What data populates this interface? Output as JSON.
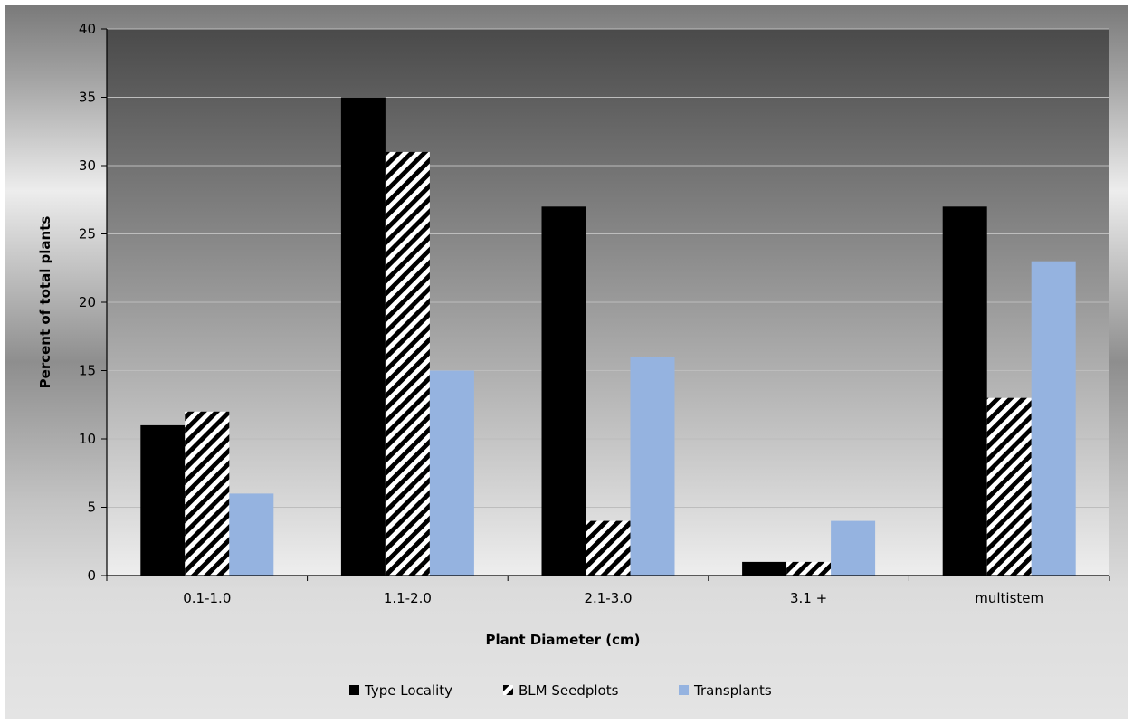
{
  "chart_data": {
    "type": "bar",
    "title": "",
    "xlabel": "Plant Diameter (cm)",
    "ylabel": "Percent of total plants",
    "categories": [
      "0.1-1.0",
      "1.1-2.0",
      "2.1-3.0",
      "3.1 +",
      "multistem"
    ],
    "series": [
      {
        "name": "Type Locality",
        "values": [
          11,
          35,
          27,
          1,
          27
        ],
        "color": "#000000",
        "fill": "solid"
      },
      {
        "name": "BLM Seedplots",
        "values": [
          12,
          31,
          4,
          1,
          13
        ],
        "color": "#000000",
        "fill": "diagonal-hatch"
      },
      {
        "name": "Transplants",
        "values": [
          6,
          15,
          16,
          4,
          23
        ],
        "color": "#95b3e0",
        "fill": "solid"
      }
    ],
    "ylim": [
      0,
      40
    ],
    "yticks": [
      0,
      5,
      10,
      15,
      20,
      25,
      30,
      35,
      40
    ],
    "grid": true,
    "legend": "bottom"
  }
}
